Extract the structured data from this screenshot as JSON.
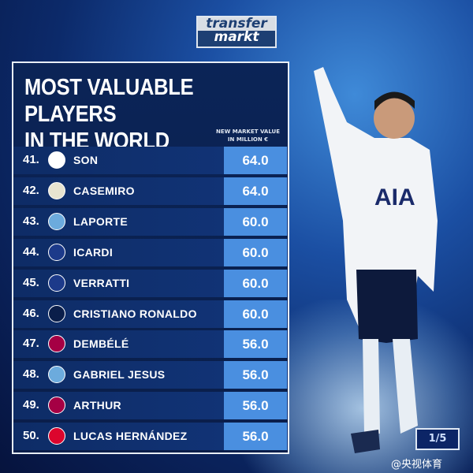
{
  "logo": {
    "line1": "transfer",
    "line2": "markt"
  },
  "title": {
    "line1": "MOST VALUABLE PLAYERS",
    "line2": "IN THE WORLD"
  },
  "column_header": {
    "line1": "NEW MARKET VALUE",
    "line2": "IN MILLION €"
  },
  "players": [
    {
      "rank": "41.",
      "club_crest": "tottenham-crest",
      "name": "SON",
      "value": "64.0",
      "crest_color": "#ffffff"
    },
    {
      "rank": "42.",
      "club_crest": "real-madrid-crest",
      "name": "CASEMIRO",
      "value": "64.0",
      "crest_color": "#e8e4d0"
    },
    {
      "rank": "43.",
      "club_crest": "man-city-crest",
      "name": "LAPORTE",
      "value": "60.0",
      "crest_color": "#6cabdd"
    },
    {
      "rank": "44.",
      "club_crest": "psg-crest",
      "name": "ICARDI",
      "value": "60.0",
      "crest_color": "#1c3a8a"
    },
    {
      "rank": "45.",
      "club_crest": "psg-crest",
      "name": "VERRATTI",
      "value": "60.0",
      "crest_color": "#1c3a8a"
    },
    {
      "rank": "46.",
      "club_crest": "juventus-crest",
      "name": "CRISTIANO RONALDO",
      "value": "60.0",
      "crest_color": "#0a1e4a"
    },
    {
      "rank": "47.",
      "club_crest": "barcelona-crest",
      "name": "DEMBÉLÉ",
      "value": "56.0",
      "crest_color": "#a50044"
    },
    {
      "rank": "48.",
      "club_crest": "man-city-crest",
      "name": "GABRIEL JESUS",
      "value": "56.0",
      "crest_color": "#6cabdd"
    },
    {
      "rank": "49.",
      "club_crest": "barcelona-crest",
      "name": "ARTHUR",
      "value": "56.0",
      "crest_color": "#a50044"
    },
    {
      "rank": "50.",
      "club_crest": "bayern-crest",
      "name": "LUCAS HERNÁNDEZ",
      "value": "56.0",
      "crest_color": "#dc052d"
    }
  ],
  "pagination": "1/5",
  "watermark": "@央视体育",
  "colors": {
    "value_box": "#4a8fe0",
    "panel": "#0b2457"
  }
}
